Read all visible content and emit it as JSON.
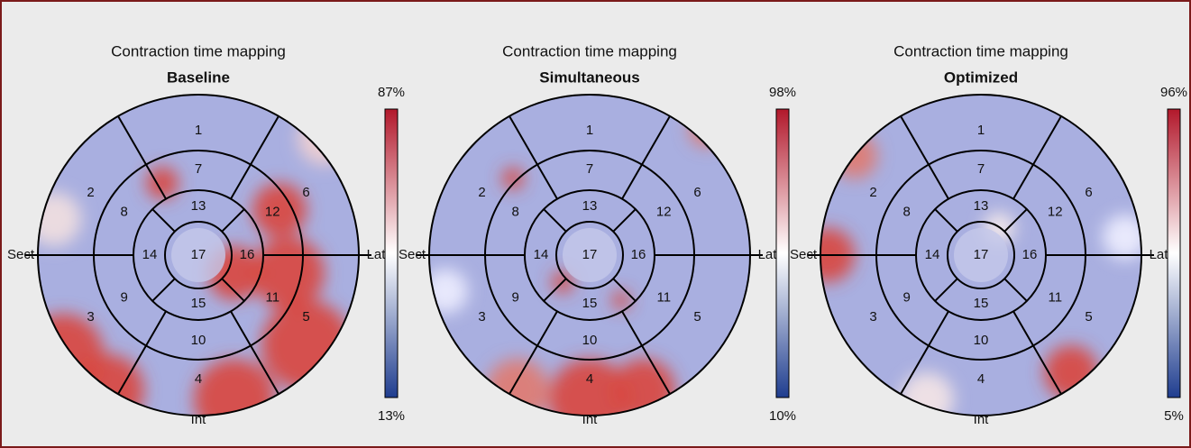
{
  "panels": [
    {
      "title": "Contraction time mapping",
      "subtitle": "Baseline",
      "scale_max": "87%",
      "scale_min": "13%",
      "segments": [
        "1",
        "2",
        "3",
        "4",
        "5",
        "6",
        "7",
        "8",
        "9",
        "10",
        "11",
        "12",
        "13",
        "14",
        "15",
        "16",
        "17"
      ],
      "left": "Sect",
      "right": "Lat",
      "bottom": "Int"
    },
    {
      "title": "Contraction time mapping",
      "subtitle": "Simultaneous",
      "scale_max": "98%",
      "scale_min": "10%",
      "segments": [
        "1",
        "2",
        "3",
        "4",
        "5",
        "6",
        "7",
        "8",
        "9",
        "10",
        "11",
        "12",
        "13",
        "14",
        "15",
        "16",
        "17"
      ],
      "left": "Sect",
      "right": "Lat",
      "bottom": "Int"
    },
    {
      "title": "Contraction time mapping",
      "subtitle": "Optimized",
      "scale_max": "96%",
      "scale_min": "5%",
      "segments": [
        "1",
        "2",
        "3",
        "4",
        "5",
        "6",
        "7",
        "8",
        "9",
        "10",
        "11",
        "12",
        "13",
        "14",
        "15",
        "16",
        "17"
      ],
      "left": "Sect",
      "right": "Lat",
      "bottom": "Int"
    }
  ]
}
